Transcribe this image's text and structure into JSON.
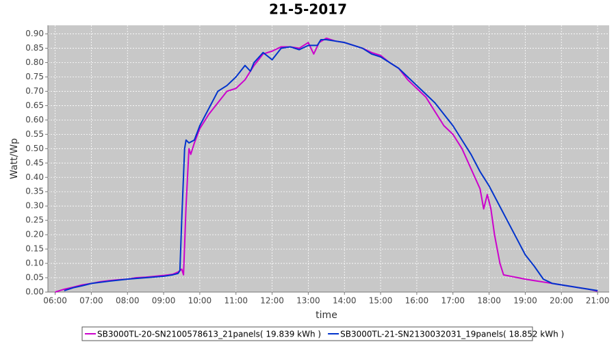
{
  "chart_data": {
    "type": "line",
    "title": "21-5-2017",
    "x_label": "time",
    "y_label": "Watt/Wp",
    "xlim": [
      5.8,
      21.32
    ],
    "ylim": [
      0,
      0.93
    ],
    "grid": true,
    "xticks": [
      {
        "value": 6,
        "label": "06:00"
      },
      {
        "value": 7,
        "label": "07:00"
      },
      {
        "value": 8,
        "label": "08:00"
      },
      {
        "value": 9,
        "label": "09:00"
      },
      {
        "value": 10,
        "label": "10:00"
      },
      {
        "value": 11,
        "label": "11:00"
      },
      {
        "value": 12,
        "label": "12:00"
      },
      {
        "value": 13,
        "label": "13:00"
      },
      {
        "value": 14,
        "label": "14:00"
      },
      {
        "value": 15,
        "label": "15:00"
      },
      {
        "value": 16,
        "label": "16:00"
      },
      {
        "value": 17,
        "label": "17:00"
      },
      {
        "value": 18,
        "label": "18:00"
      },
      {
        "value": 19,
        "label": "19:00"
      },
      {
        "value": 20,
        "label": "20:00"
      },
      {
        "value": 21,
        "label": "21:00"
      }
    ],
    "yticks": [
      {
        "value": 0,
        "label": "0.00"
      },
      {
        "value": 0.05,
        "label": "0.05"
      },
      {
        "value": 0.1,
        "label": "0.10"
      },
      {
        "value": 0.15,
        "label": "0.15"
      },
      {
        "value": 0.2,
        "label": "0.20"
      },
      {
        "value": 0.25,
        "label": "0.25"
      },
      {
        "value": 0.3,
        "label": "0.30"
      },
      {
        "value": 0.35,
        "label": "0.35"
      },
      {
        "value": 0.4,
        "label": "0.40"
      },
      {
        "value": 0.45,
        "label": "0.45"
      },
      {
        "value": 0.5,
        "label": "0.50"
      },
      {
        "value": 0.55,
        "label": "0.55"
      },
      {
        "value": 0.6,
        "label": "0.60"
      },
      {
        "value": 0.65,
        "label": "0.65"
      },
      {
        "value": 0.7,
        "label": "0.70"
      },
      {
        "value": 0.75,
        "label": "0.75"
      },
      {
        "value": 0.8,
        "label": "0.80"
      },
      {
        "value": 0.85,
        "label": "0.85"
      },
      {
        "value": 0.9,
        "label": "0.90"
      }
    ],
    "series": [
      {
        "name": "SB3000TL-20-SN2100578613_21panels( 19.839 kWh )",
        "color": "#cc00cc",
        "x": [
          6.0,
          6.25,
          6.5,
          6.75,
          7.0,
          7.25,
          7.5,
          7.75,
          8.0,
          8.25,
          8.5,
          8.75,
          9.0,
          9.25,
          9.4,
          9.5,
          9.55,
          9.62,
          9.7,
          9.75,
          9.85,
          10.0,
          10.25,
          10.5,
          10.75,
          11.0,
          11.25,
          11.5,
          11.75,
          12.0,
          12.25,
          12.5,
          12.75,
          13.0,
          13.15,
          13.3,
          13.5,
          13.75,
          14.0,
          14.25,
          14.5,
          14.75,
          15.0,
          15.25,
          15.5,
          15.75,
          16.0,
          16.25,
          16.5,
          16.75,
          17.0,
          17.25,
          17.5,
          17.75,
          17.85,
          17.95,
          18.05,
          18.15,
          18.3,
          18.4,
          18.6,
          18.8,
          19.0,
          19.25,
          19.5,
          19.75,
          20.0,
          20.25,
          20.5,
          20.75,
          21.0
        ],
        "values": [
          0.0,
          0.01,
          0.017,
          0.025,
          0.03,
          0.036,
          0.04,
          0.043,
          0.045,
          0.05,
          0.052,
          0.055,
          0.058,
          0.062,
          0.07,
          0.08,
          0.06,
          0.3,
          0.5,
          0.48,
          0.52,
          0.57,
          0.62,
          0.66,
          0.7,
          0.71,
          0.74,
          0.79,
          0.83,
          0.84,
          0.855,
          0.855,
          0.85,
          0.87,
          0.83,
          0.87,
          0.885,
          0.875,
          0.87,
          0.86,
          0.85,
          0.835,
          0.825,
          0.8,
          0.78,
          0.74,
          0.71,
          0.68,
          0.63,
          0.58,
          0.55,
          0.5,
          0.43,
          0.36,
          0.29,
          0.34,
          0.29,
          0.2,
          0.1,
          0.06,
          0.055,
          0.05,
          0.045,
          0.04,
          0.035,
          0.03,
          0.025,
          0.02,
          0.015,
          0.01,
          0.003
        ]
      },
      {
        "name": "SB3000TL-21-SN2130032031_19panels( 18.852 kWh )",
        "color": "#0033cc",
        "x": [
          6.25,
          6.5,
          6.75,
          7.0,
          7.5,
          8.0,
          8.5,
          9.0,
          9.25,
          9.4,
          9.45,
          9.5,
          9.58,
          9.62,
          9.7,
          9.85,
          10.0,
          10.25,
          10.5,
          10.75,
          11.0,
          11.25,
          11.4,
          11.5,
          11.75,
          12.0,
          12.25,
          12.5,
          12.75,
          13.0,
          13.25,
          13.35,
          13.5,
          13.75,
          14.0,
          14.25,
          14.5,
          14.75,
          15.0,
          15.25,
          15.5,
          15.75,
          16.0,
          16.25,
          16.5,
          16.75,
          17.0,
          17.25,
          17.5,
          17.75,
          18.0,
          18.25,
          18.5,
          18.75,
          19.0,
          19.25,
          19.5,
          19.75,
          20.0,
          20.5,
          21.0
        ],
        "values": [
          0.005,
          0.015,
          0.022,
          0.03,
          0.038,
          0.045,
          0.05,
          0.055,
          0.06,
          0.065,
          0.075,
          0.25,
          0.5,
          0.53,
          0.52,
          0.53,
          0.58,
          0.64,
          0.7,
          0.72,
          0.75,
          0.79,
          0.77,
          0.8,
          0.835,
          0.81,
          0.85,
          0.855,
          0.845,
          0.86,
          0.86,
          0.88,
          0.88,
          0.875,
          0.87,
          0.86,
          0.85,
          0.83,
          0.82,
          0.8,
          0.78,
          0.75,
          0.72,
          0.69,
          0.66,
          0.62,
          0.58,
          0.53,
          0.48,
          0.42,
          0.37,
          0.31,
          0.25,
          0.19,
          0.13,
          0.09,
          0.045,
          0.03,
          0.025,
          0.015,
          0.005
        ]
      }
    ]
  }
}
